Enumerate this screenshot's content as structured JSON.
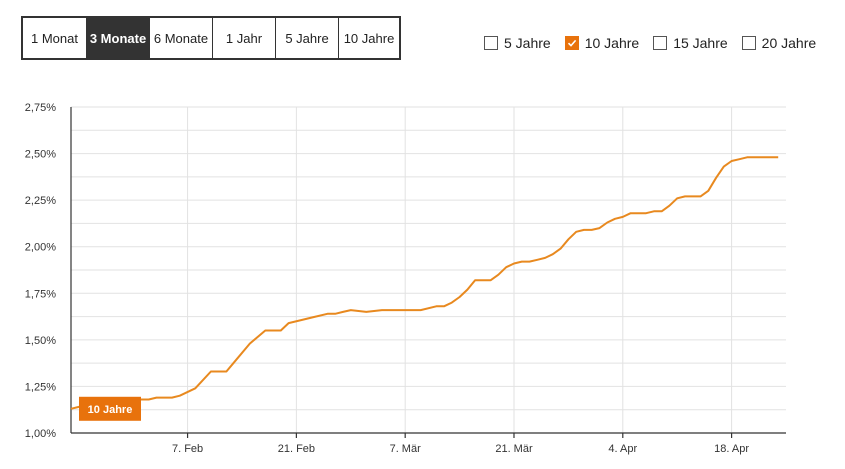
{
  "range_tabs": [
    {
      "label": "1 Monat",
      "active": false
    },
    {
      "label": "3 Monate",
      "active": true
    },
    {
      "label": "6 Monate",
      "active": false
    },
    {
      "label": "1 Jahr",
      "active": false
    },
    {
      "label": "5 Jahre",
      "active": false
    },
    {
      "label": "10 Jahre",
      "active": false
    }
  ],
  "filters": [
    {
      "label": "5 Jahre",
      "checked": false
    },
    {
      "label": "10 Jahre",
      "checked": true
    },
    {
      "label": "15 Jahre",
      "checked": false
    },
    {
      "label": "20 Jahre",
      "checked": false
    }
  ],
  "colors": {
    "accent": "#e8720c",
    "line": "#e8891f",
    "active_tab": "#333333"
  },
  "chart_data": {
    "type": "line",
    "title": "",
    "xlabel": "",
    "ylabel": "",
    "grid": true,
    "ylim": [
      1.0,
      2.75
    ],
    "y_ticks": [
      "1,00%",
      "1,25%",
      "1,50%",
      "1,75%",
      "2,00%",
      "2,25%",
      "2,50%",
      "2,75%"
    ],
    "y_tick_values": [
      1.0,
      1.25,
      1.5,
      1.75,
      2.0,
      2.25,
      2.5,
      2.75
    ],
    "x_ticks": [
      "7. Feb",
      "21. Feb",
      "7. Mär",
      "21. Mär",
      "4. Apr",
      "18. Apr"
    ],
    "x_tick_values": [
      15,
      29,
      43,
      57,
      71,
      85
    ],
    "x_unit": "days from 24. Jan",
    "series": [
      {
        "name": "10 Jahre",
        "x": [
          0,
          1,
          4,
          7,
          9,
          10,
          11,
          13,
          14,
          16,
          18,
          19,
          20,
          21,
          23,
          25,
          27,
          28,
          30,
          31,
          33,
          34,
          35,
          36,
          38,
          40,
          41,
          42,
          43,
          45,
          47,
          48,
          49,
          50,
          51,
          52,
          53,
          54,
          55,
          56,
          57,
          58,
          59,
          60,
          61,
          62,
          63,
          64,
          65,
          66,
          67,
          68,
          69,
          70,
          71,
          72,
          73,
          74,
          75,
          76,
          77,
          78,
          79,
          80,
          81,
          82,
          83,
          84,
          85,
          86,
          87,
          88,
          89,
          90,
          91
        ],
        "values": [
          1.13,
          1.14,
          1.14,
          1.16,
          1.18,
          1.18,
          1.19,
          1.19,
          1.2,
          1.24,
          1.33,
          1.33,
          1.33,
          1.38,
          1.48,
          1.55,
          1.55,
          1.59,
          1.61,
          1.62,
          1.64,
          1.64,
          1.65,
          1.66,
          1.65,
          1.66,
          1.66,
          1.66,
          1.66,
          1.66,
          1.68,
          1.68,
          1.7,
          1.73,
          1.77,
          1.82,
          1.82,
          1.82,
          1.85,
          1.89,
          1.91,
          1.92,
          1.92,
          1.93,
          1.94,
          1.96,
          1.99,
          2.04,
          2.08,
          2.09,
          2.09,
          2.1,
          2.13,
          2.15,
          2.16,
          2.18,
          2.18,
          2.18,
          2.19,
          2.19,
          2.22,
          2.26,
          2.27,
          2.27,
          2.27,
          2.3,
          2.37,
          2.43,
          2.46,
          2.47,
          2.48,
          2.48,
          2.48,
          2.48,
          2.48
        ]
      }
    ]
  }
}
